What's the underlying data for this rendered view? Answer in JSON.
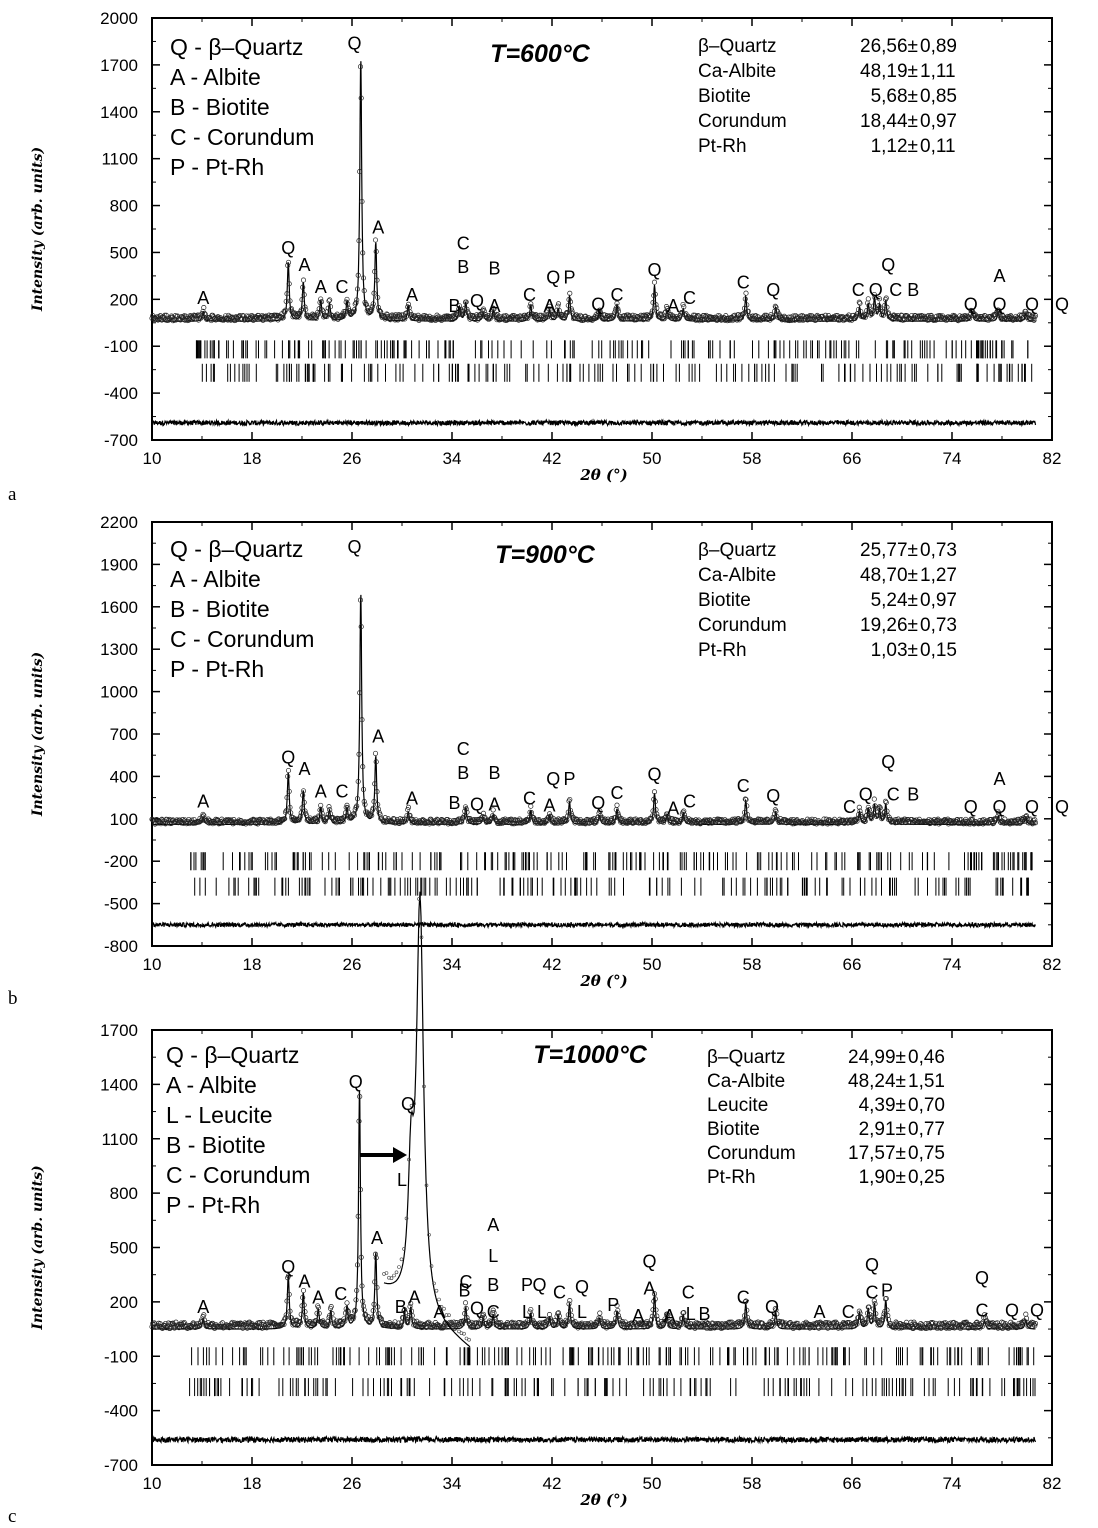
{
  "chart_data": [
    {
      "type": "scatter",
      "panel_label": "a",
      "title": "T=600°C",
      "xlabel": "2θ (°)",
      "ylabel": "Intensity (arb. units)",
      "xlim": [
        10,
        82
      ],
      "ylim": [
        -700,
        2000
      ],
      "xticks": [
        "10",
        "18",
        "26",
        "34",
        "42",
        "50",
        "58",
        "66",
        "74",
        "82"
      ],
      "yticks": [
        "2000",
        "1700",
        "1400",
        "1100",
        "800",
        "500",
        "200",
        "-100",
        "-400",
        "-700"
      ],
      "legend": [
        "Q - β–Quartz",
        "A - Albite",
        "B - Biotite",
        "C - Corundum",
        "P - Pt-Rh"
      ],
      "composition": [
        {
          "phase": "β–Quartz",
          "value": "26,56",
          "err": "0,89"
        },
        {
          "phase": "Ca-Albite",
          "value": "48,19",
          "err": "1,11"
        },
        {
          "phase": "Biotite",
          "value": "5,68",
          "err": "0,85"
        },
        {
          "phase": "Corundum",
          "value": "18,44",
          "err": "0,97"
        },
        {
          "phase": "Pt-Rh",
          "value": "1,12",
          "err": "0,11"
        }
      ],
      "baseline": 80,
      "calc_offset": -20,
      "diff_level": -590,
      "tick_rows": [
        -120,
        -270
      ],
      "peaks": [
        {
          "x": 14.1,
          "h": 60
        },
        {
          "x": 20.9,
          "h": 380
        },
        {
          "x": 22.1,
          "h": 250
        },
        {
          "x": 23.5,
          "h": 130
        },
        {
          "x": 24.2,
          "h": 110
        },
        {
          "x": 25.6,
          "h": 120
        },
        {
          "x": 26.7,
          "h": 1680
        },
        {
          "x": 27.9,
          "h": 500
        },
        {
          "x": 30.5,
          "h": 100
        },
        {
          "x": 34.6,
          "h": 90
        },
        {
          "x": 35.1,
          "h": 120
        },
        {
          "x": 36.5,
          "h": 50
        },
        {
          "x": 37.3,
          "h": 70
        },
        {
          "x": 40.3,
          "h": 100
        },
        {
          "x": 41.8,
          "h": 70
        },
        {
          "x": 42.5,
          "h": 80
        },
        {
          "x": 43.4,
          "h": 160
        },
        {
          "x": 45.8,
          "h": 60
        },
        {
          "x": 47.2,
          "h": 110
        },
        {
          "x": 50.2,
          "h": 230
        },
        {
          "x": 51.2,
          "h": 70
        },
        {
          "x": 52.5,
          "h": 80
        },
        {
          "x": 57.5,
          "h": 160
        },
        {
          "x": 59.9,
          "h": 90
        },
        {
          "x": 66.6,
          "h": 90
        },
        {
          "x": 67.3,
          "h": 110
        },
        {
          "x": 67.8,
          "h": 150
        },
        {
          "x": 68.2,
          "h": 100
        },
        {
          "x": 68.7,
          "h": 130
        },
        {
          "x": 75.6,
          "h": 60
        },
        {
          "x": 77.7,
          "h": 60
        },
        {
          "x": 79.9,
          "h": 50
        },
        {
          "x": 81.2,
          "h": 50
        }
      ],
      "peak_labels": [
        {
          "x": 14.1,
          "y": 170,
          "t": "A"
        },
        {
          "x": 20.9,
          "y": 490,
          "t": "Q"
        },
        {
          "x": 22.2,
          "y": 380,
          "t": "A"
        },
        {
          "x": 23.5,
          "y": 240,
          "t": "A"
        },
        {
          "x": 25.2,
          "y": 240,
          "t": "C"
        },
        {
          "x": 26.2,
          "y": 1800,
          "t": "Q"
        },
        {
          "x": 28.1,
          "y": 620,
          "t": "A"
        },
        {
          "x": 30.8,
          "y": 190,
          "t": "A"
        },
        {
          "x": 34.9,
          "y": 520,
          "t": "C"
        },
        {
          "x": 34.9,
          "y": 370,
          "t": "B"
        },
        {
          "x": 34.2,
          "y": 120,
          "t": "B"
        },
        {
          "x": 36.0,
          "y": 150,
          "t": "Q"
        },
        {
          "x": 37.4,
          "y": 360,
          "t": "B"
        },
        {
          "x": 37.4,
          "y": 120,
          "t": "A"
        },
        {
          "x": 40.2,
          "y": 190,
          "t": "C"
        },
        {
          "x": 42.1,
          "y": 300,
          "t": "Q"
        },
        {
          "x": 43.4,
          "y": 300,
          "t": "P"
        },
        {
          "x": 41.8,
          "y": 120,
          "t": "A"
        },
        {
          "x": 45.7,
          "y": 130,
          "t": "Q"
        },
        {
          "x": 47.2,
          "y": 190,
          "t": "C"
        },
        {
          "x": 50.2,
          "y": 350,
          "t": "Q"
        },
        {
          "x": 51.7,
          "y": 120,
          "t": "A"
        },
        {
          "x": 53.0,
          "y": 170,
          "t": "C"
        },
        {
          "x": 57.3,
          "y": 270,
          "t": "C"
        },
        {
          "x": 59.7,
          "y": 220,
          "t": "Q"
        },
        {
          "x": 66.5,
          "y": 220,
          "t": "C"
        },
        {
          "x": 67.9,
          "y": 220,
          "t": "Q"
        },
        {
          "x": 69.5,
          "y": 220,
          "t": "C"
        },
        {
          "x": 70.9,
          "y": 220,
          "t": "B"
        },
        {
          "x": 68.9,
          "y": 380,
          "t": "Q"
        },
        {
          "x": 75.5,
          "y": 130,
          "t": "Q"
        },
        {
          "x": 77.8,
          "y": 130,
          "t": "Q"
        },
        {
          "x": 77.8,
          "y": 310,
          "t": "A"
        },
        {
          "x": 80.4,
          "y": 130,
          "t": "Q"
        },
        {
          "x": 82.8,
          "y": 130,
          "t": "Q"
        }
      ]
    },
    {
      "type": "scatter",
      "panel_label": "b",
      "title": "T=900°C",
      "xlabel": "2θ (°)",
      "ylabel": "Intensity (arb. units)",
      "xlim": [
        10,
        82
      ],
      "ylim": [
        -800,
        2200
      ],
      "xticks": [
        "10",
        "18",
        "26",
        "34",
        "42",
        "50",
        "58",
        "66",
        "74",
        "82"
      ],
      "yticks": [
        "2200",
        "1900",
        "1600",
        "1300",
        "1000",
        "700",
        "400",
        "100",
        "-200",
        "-500",
        "-800"
      ],
      "legend": [
        "Q - β–Quartz",
        "A - Albite",
        "B - Biotite",
        "C - Corundum",
        "P - Pt-Rh"
      ],
      "composition": [
        {
          "phase": "β–Quartz",
          "value": "25,77",
          "err": "0,73"
        },
        {
          "phase": "Ca-Albite",
          "value": "48,70",
          "err": "1,27"
        },
        {
          "phase": "Biotite",
          "value": "5,24",
          "err": "0,97"
        },
        {
          "phase": "Corundum",
          "value": "19,26",
          "err": "0,73"
        },
        {
          "phase": "Pt-Rh",
          "value": "1,03",
          "err": "0,15"
        }
      ],
      "baseline": 80,
      "calc_offset": -20,
      "diff_level": -650,
      "tick_rows": [
        -200,
        -380
      ],
      "peaks": [
        {
          "x": 14.1,
          "h": 50
        },
        {
          "x": 20.9,
          "h": 370
        },
        {
          "x": 22.1,
          "h": 240
        },
        {
          "x": 23.5,
          "h": 120
        },
        {
          "x": 24.2,
          "h": 100
        },
        {
          "x": 25.6,
          "h": 110
        },
        {
          "x": 26.7,
          "h": 1640
        },
        {
          "x": 27.9,
          "h": 480
        },
        {
          "x": 30.5,
          "h": 90
        },
        {
          "x": 35.1,
          "h": 120
        },
        {
          "x": 36.5,
          "h": 50
        },
        {
          "x": 37.3,
          "h": 70
        },
        {
          "x": 40.3,
          "h": 100
        },
        {
          "x": 41.8,
          "h": 60
        },
        {
          "x": 43.4,
          "h": 160
        },
        {
          "x": 45.8,
          "h": 60
        },
        {
          "x": 47.2,
          "h": 110
        },
        {
          "x": 50.2,
          "h": 220
        },
        {
          "x": 51.2,
          "h": 70
        },
        {
          "x": 52.5,
          "h": 80
        },
        {
          "x": 57.5,
          "h": 170
        },
        {
          "x": 59.9,
          "h": 90
        },
        {
          "x": 66.6,
          "h": 90
        },
        {
          "x": 67.3,
          "h": 110
        },
        {
          "x": 67.8,
          "h": 140
        },
        {
          "x": 68.2,
          "h": 100
        },
        {
          "x": 68.7,
          "h": 140
        },
        {
          "x": 77.7,
          "h": 60
        },
        {
          "x": 79.9,
          "h": 50
        },
        {
          "x": 81.2,
          "h": 50
        }
      ],
      "peak_labels": [
        {
          "x": 14.1,
          "y": 180,
          "t": "A"
        },
        {
          "x": 20.9,
          "y": 490,
          "t": "Q"
        },
        {
          "x": 22.2,
          "y": 410,
          "t": "A"
        },
        {
          "x": 23.5,
          "y": 250,
          "t": "A"
        },
        {
          "x": 25.2,
          "y": 250,
          "t": "C"
        },
        {
          "x": 26.2,
          "y": 1980,
          "t": "Q"
        },
        {
          "x": 28.1,
          "y": 640,
          "t": "A"
        },
        {
          "x": 30.8,
          "y": 200,
          "t": "A"
        },
        {
          "x": 34.9,
          "y": 550,
          "t": "C"
        },
        {
          "x": 34.9,
          "y": 380,
          "t": "B"
        },
        {
          "x": 34.2,
          "y": 170,
          "t": "B"
        },
        {
          "x": 36.0,
          "y": 160,
          "t": "Q"
        },
        {
          "x": 37.4,
          "y": 380,
          "t": "B"
        },
        {
          "x": 37.4,
          "y": 160,
          "t": "A"
        },
        {
          "x": 40.2,
          "y": 200,
          "t": "C"
        },
        {
          "x": 42.1,
          "y": 340,
          "t": "Q"
        },
        {
          "x": 43.4,
          "y": 340,
          "t": "P"
        },
        {
          "x": 41.8,
          "y": 150,
          "t": "A"
        },
        {
          "x": 45.7,
          "y": 170,
          "t": "Q"
        },
        {
          "x": 47.2,
          "y": 240,
          "t": "C"
        },
        {
          "x": 50.2,
          "y": 370,
          "t": "Q"
        },
        {
          "x": 51.7,
          "y": 130,
          "t": "A"
        },
        {
          "x": 53.0,
          "y": 180,
          "t": "C"
        },
        {
          "x": 57.3,
          "y": 290,
          "t": "C"
        },
        {
          "x": 59.7,
          "y": 220,
          "t": "Q"
        },
        {
          "x": 65.8,
          "y": 140,
          "t": "C"
        },
        {
          "x": 67.1,
          "y": 230,
          "t": "Q"
        },
        {
          "x": 69.3,
          "y": 230,
          "t": "C"
        },
        {
          "x": 70.9,
          "y": 230,
          "t": "B"
        },
        {
          "x": 68.9,
          "y": 460,
          "t": "Q"
        },
        {
          "x": 75.5,
          "y": 140,
          "t": "Q"
        },
        {
          "x": 77.8,
          "y": 140,
          "t": "Q"
        },
        {
          "x": 77.8,
          "y": 340,
          "t": "A"
        },
        {
          "x": 80.4,
          "y": 140,
          "t": "Q"
        },
        {
          "x": 82.8,
          "y": 140,
          "t": "Q"
        }
      ]
    },
    {
      "type": "scatter",
      "panel_label": "c",
      "title": "T=1000°C",
      "xlabel": "2θ (°)",
      "ylabel": "Intensity (arb. units)",
      "xlim": [
        10,
        82
      ],
      "ylim": [
        -700,
        1700
      ],
      "xticks": [
        "10",
        "18",
        "26",
        "34",
        "42",
        "50",
        "58",
        "66",
        "74",
        "82"
      ],
      "yticks": [
        "1700",
        "1400",
        "1100",
        "800",
        "500",
        "200",
        "-100",
        "-400",
        "-700"
      ],
      "legend": [
        "Q - β–Quartz",
        "A - Albite",
        "L - Leucite",
        "B - Biotite",
        "C - Corundum",
        "P - Pt-Rh"
      ],
      "composition": [
        {
          "phase": "β–Quartz",
          "value": "24,99",
          "err": "0,46"
        },
        {
          "phase": "Ca-Albite",
          "value": "48,24",
          "err": "1,51"
        },
        {
          "phase": "Leucite",
          "value": "4,39",
          "err": "0,70"
        },
        {
          "phase": "Biotite",
          "value": "2,91",
          "err": "0,77"
        },
        {
          "phase": "Corundum",
          "value": "17,57",
          "err": "0,75"
        },
        {
          "phase": "Pt-Rh",
          "value": "1,90",
          "err": "0,25"
        }
      ],
      "baseline": 70,
      "calc_offset": -20,
      "diff_level": -560,
      "tick_rows": [
        -100,
        -270
      ],
      "peaks": [
        {
          "x": 14.1,
          "h": 60
        },
        {
          "x": 20.9,
          "h": 300
        },
        {
          "x": 22.1,
          "h": 200
        },
        {
          "x": 23.3,
          "h": 110
        },
        {
          "x": 24.3,
          "h": 100
        },
        {
          "x": 25.6,
          "h": 120
        },
        {
          "x": 26.6,
          "h": 1330
        },
        {
          "x": 27.9,
          "h": 420
        },
        {
          "x": 30.2,
          "h": 90
        },
        {
          "x": 30.7,
          "h": 120
        },
        {
          "x": 35.1,
          "h": 120
        },
        {
          "x": 36.5,
          "h": 60
        },
        {
          "x": 37.3,
          "h": 80
        },
        {
          "x": 40.3,
          "h": 90
        },
        {
          "x": 41.8,
          "h": 60
        },
        {
          "x": 42.5,
          "h": 70
        },
        {
          "x": 43.4,
          "h": 140
        },
        {
          "x": 45.8,
          "h": 60
        },
        {
          "x": 47.2,
          "h": 100
        },
        {
          "x": 50.2,
          "h": 190
        },
        {
          "x": 51.2,
          "h": 70
        },
        {
          "x": 52.5,
          "h": 80
        },
        {
          "x": 57.5,
          "h": 140
        },
        {
          "x": 59.9,
          "h": 90
        },
        {
          "x": 66.6,
          "h": 90
        },
        {
          "x": 67.3,
          "h": 110
        },
        {
          "x": 67.8,
          "h": 140
        },
        {
          "x": 68.7,
          "h": 160
        },
        {
          "x": 76.6,
          "h": 50
        },
        {
          "x": 79.9,
          "h": 50
        }
      ],
      "peak_labels": [
        {
          "x": 14.1,
          "y": 140,
          "t": "A"
        },
        {
          "x": 20.9,
          "y": 360,
          "t": "Q"
        },
        {
          "x": 22.2,
          "y": 280,
          "t": "A"
        },
        {
          "x": 23.3,
          "y": 190,
          "t": "A"
        },
        {
          "x": 25.1,
          "y": 210,
          "t": "C"
        },
        {
          "x": 26.3,
          "y": 1380,
          "t": "Q"
        },
        {
          "x": 28.0,
          "y": 520,
          "t": "A"
        },
        {
          "x": 29.9,
          "y": 140,
          "t": "B"
        },
        {
          "x": 31.0,
          "y": 190,
          "t": "A"
        },
        {
          "x": 33.0,
          "y": 110,
          "t": "A"
        },
        {
          "x": 35.0,
          "y": 230,
          "t": "B"
        },
        {
          "x": 36.0,
          "y": 130,
          "t": "Q"
        },
        {
          "x": 37.3,
          "y": 110,
          "t": "C"
        },
        {
          "x": 37.3,
          "y": 260,
          "t": "B"
        },
        {
          "x": 37.3,
          "y": 420,
          "t": "L"
        },
        {
          "x": 37.3,
          "y": 590,
          "t": "A"
        },
        {
          "x": 40.0,
          "y": 260,
          "t": "P"
        },
        {
          "x": 41.0,
          "y": 260,
          "t": "Q"
        },
        {
          "x": 40.0,
          "y": 110,
          "t": "L"
        },
        {
          "x": 41.2,
          "y": 110,
          "t": "L"
        },
        {
          "x": 42.6,
          "y": 220,
          "t": "C"
        },
        {
          "x": 44.4,
          "y": 250,
          "t": "Q"
        },
        {
          "x": 44.4,
          "y": 110,
          "t": "L"
        },
        {
          "x": 46.9,
          "y": 150,
          "t": "P"
        },
        {
          "x": 48.9,
          "y": 90,
          "t": "A"
        },
        {
          "x": 49.8,
          "y": 390,
          "t": "Q"
        },
        {
          "x": 49.8,
          "y": 240,
          "t": "A"
        },
        {
          "x": 51.4,
          "y": 90,
          "t": "A"
        },
        {
          "x": 52.9,
          "y": 220,
          "t": "C"
        },
        {
          "x": 53.1,
          "y": 100,
          "t": "L"
        },
        {
          "x": 54.2,
          "y": 100,
          "t": "B"
        },
        {
          "x": 57.3,
          "y": 190,
          "t": "C"
        },
        {
          "x": 59.6,
          "y": 140,
          "t": "Q"
        },
        {
          "x": 63.4,
          "y": 110,
          "t": "A"
        },
        {
          "x": 65.7,
          "y": 110,
          "t": "C"
        },
        {
          "x": 67.6,
          "y": 220,
          "t": "C"
        },
        {
          "x": 67.6,
          "y": 370,
          "t": "Q"
        },
        {
          "x": 68.8,
          "y": 230,
          "t": "P"
        },
        {
          "x": 76.4,
          "y": 300,
          "t": "Q"
        },
        {
          "x": 76.4,
          "y": 120,
          "t": "C"
        },
        {
          "x": 78.8,
          "y": 120,
          "t": "Q"
        },
        {
          "x": 80.8,
          "y": 120,
          "t": "Q"
        }
      ],
      "inset_labels": [
        "Q",
        "L",
        "C"
      ]
    }
  ]
}
